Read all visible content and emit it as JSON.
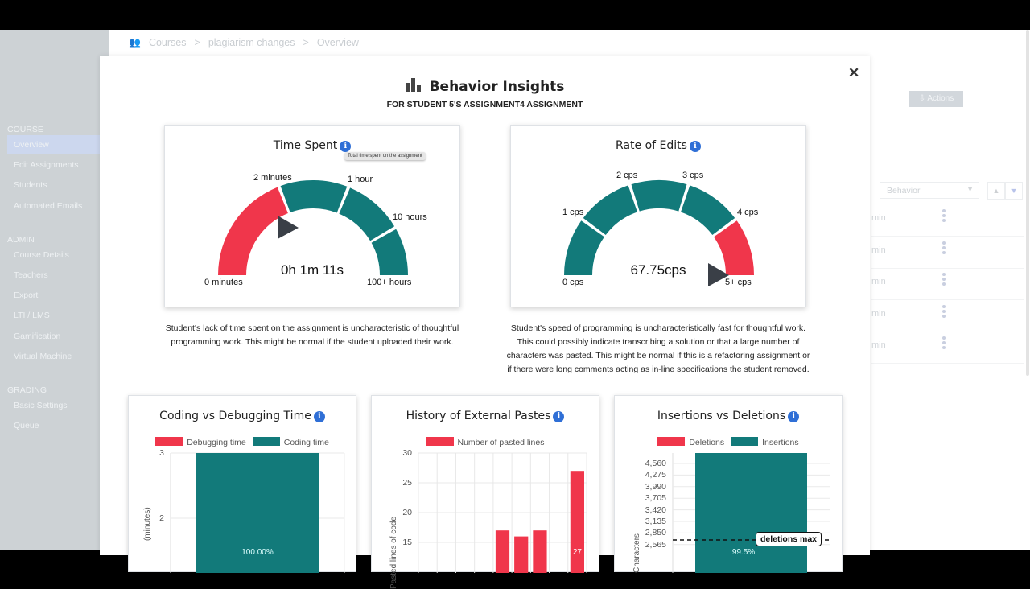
{
  "breadcrumb": [
    "Courses",
    "plagiarism changes",
    "Overview"
  ],
  "sidebar": {
    "sections": [
      {
        "label": "COURSE",
        "items": [
          "Overview",
          "Edit Assignments",
          "Students",
          "Automated Emails"
        ]
      },
      {
        "label": "ADMIN",
        "items": [
          "Course Details",
          "Teachers",
          "Export",
          "LTI / LMS",
          "Gamification",
          "Virtual Machine"
        ]
      },
      {
        "label": "GRADING",
        "items": [
          "Basic Settings",
          "Queue"
        ]
      }
    ],
    "active": "Overview"
  },
  "background": {
    "actions_label": "⇩ Actions",
    "sort_select": "Behavior",
    "row_text": "min",
    "rows": 5
  },
  "modal": {
    "title": "Behavior Insights",
    "subtitle": "FOR STUDENT 5'S ASSIGNMENT4 ASSIGNMENT",
    "time_spent": {
      "title": "Time Spent",
      "tooltip": "Total time spent on the assignment",
      "value": "0h 1m 11s",
      "labels": [
        "0 minutes",
        "2 minutes",
        "1 hour",
        "10 hours",
        "100+ hours"
      ],
      "description": "Student's lack of time spent on the assignment is uncharacteristic of thoughtful programming work. This might be normal if the student uploaded their work."
    },
    "rate_of_edits": {
      "title": "Rate of Edits",
      "value": "67.75cps",
      "labels": [
        "0 cps",
        "1 cps",
        "2 cps",
        "3 cps",
        "4 cps",
        "5+ cps"
      ],
      "description": "Student's speed of programming is uncharacteristically fast for thoughtful work. This could possibly indicate transcribing a solution or that a large number of characters was pasted. This might be normal if this is a refactoring assignment or if there were long comments acting as in-line specifications the student removed."
    }
  },
  "colors": {
    "teal": "#127a7a",
    "red": "#f0364b",
    "pointer": "#3a3f47",
    "info": "#2f6fd6"
  },
  "chart_data": [
    {
      "type": "bar",
      "title": "Coding vs Debugging Time",
      "ylabel": "(minutes)",
      "legend": [
        "Debugging time",
        "Coding time"
      ],
      "ticks": [
        3,
        2
      ],
      "series": [
        {
          "name": "Coding time",
          "values": [
            3
          ]
        }
      ],
      "data_label": "100.00%",
      "ylim_top": 3
    },
    {
      "type": "bar",
      "title": "History of External Pastes",
      "ylabel": "Pasted lines of code",
      "legend": [
        "Number of pasted lines"
      ],
      "ticks": [
        30,
        25,
        20,
        15
      ],
      "values": [
        null,
        null,
        null,
        null,
        17,
        16,
        17,
        null,
        27
      ],
      "data_label": "27",
      "ylim_top": 30
    },
    {
      "type": "bar",
      "title": "Insertions vs Deletions",
      "ylabel": "Characters",
      "legend": [
        "Deletions",
        "Insertions"
      ],
      "ticks": [
        4560,
        4275,
        3990,
        3705,
        3420,
        3135,
        2850,
        2565
      ],
      "annotation": "deletions max",
      "annotation_value": 2640,
      "data_label": "99.5%"
    }
  ]
}
